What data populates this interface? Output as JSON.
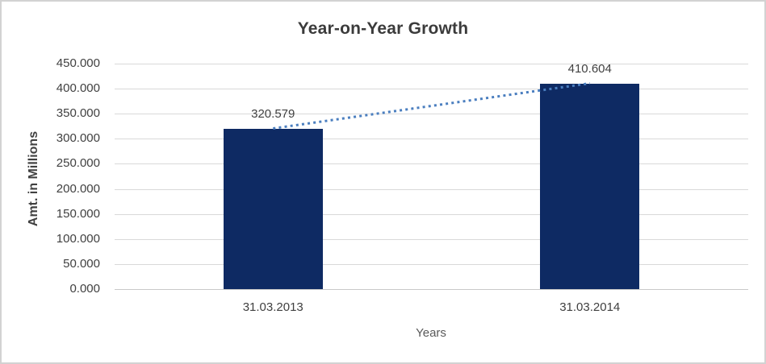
{
  "chart_data": {
    "type": "bar",
    "title": "Year-on-Year Growth",
    "xlabel": "Years",
    "ylabel": "Amt. in Millions",
    "categories": [
      "31.03.2013",
      "31.03.2014"
    ],
    "values": [
      320.579,
      410.604
    ],
    "value_labels": [
      "320.579",
      "410.604"
    ],
    "ylim": [
      0,
      450
    ],
    "ytick_step": 50,
    "ytick_labels": [
      "0.000",
      "50.000",
      "100.000",
      "150.000",
      "200.000",
      "250.000",
      "300.000",
      "350.000",
      "400.000",
      "450.000"
    ],
    "grid": true,
    "legend_position": "none",
    "trendline": {
      "style": "dotted",
      "connects": [
        "31.03.2013",
        "31.03.2014"
      ]
    },
    "colors": {
      "bar": "#0e2a63",
      "trendline": "#4a7ebf",
      "gridline": "#d9d9d9",
      "baseline": "#c9c9c9",
      "text": "#404040",
      "title": "#3b3b3b",
      "border": "#d2d2d2",
      "background": "#ffffff"
    }
  }
}
